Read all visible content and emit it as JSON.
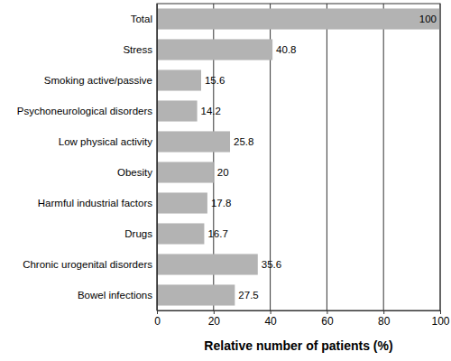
{
  "chart_data": {
    "type": "bar",
    "orientation": "horizontal",
    "categories": [
      "Total",
      "Stress",
      "Smoking active/passive",
      "Psychoneurological disorders",
      "Low physical activity",
      "Obesity",
      "Harmful industrial factors",
      "Drugs",
      "Chronic urogenital disorders",
      "Bowel infections"
    ],
    "values": [
      100,
      40.8,
      15.6,
      14.2,
      25.8,
      20,
      17.8,
      16.7,
      35.6,
      27.5
    ],
    "color": "#b3b3b3",
    "xlim": [
      0,
      100
    ],
    "xticks": [
      0,
      20,
      40,
      60,
      80,
      100
    ],
    "x_label": "Relative number of patients (%)",
    "grid": true,
    "data_labels": true
  }
}
